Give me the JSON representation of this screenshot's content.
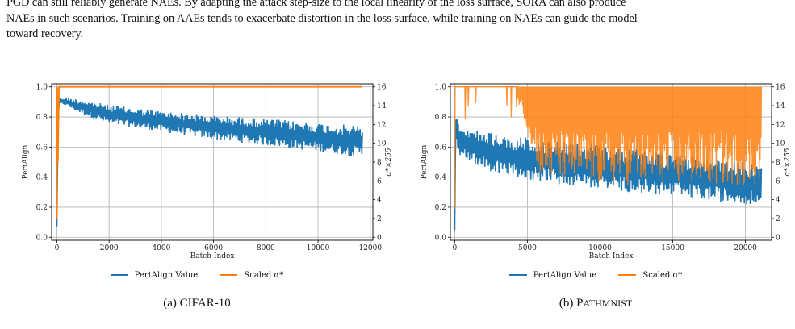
{
  "paragraph": {
    "line1": "PGD can still reliably generate NAEs. By adapting the attack step-size to the local linearity of the loss surface, SORA can also produce",
    "line2": "NAEs in such scenarios. Training on AAEs tends to exacerbate distortion in the loss surface, while training on NAEs can guide the model",
    "line3": "toward recovery."
  },
  "colors": {
    "pertalign": "#1f77b4",
    "scaled": "#ff7f0e",
    "grid": "#b0b0b0"
  },
  "figures": [
    {
      "caption_label": "(a)",
      "caption_name": "CIFAR-10",
      "legend": [
        "PertAlign Value",
        "Scaled α*"
      ]
    },
    {
      "caption_label": "(b)",
      "caption_name_first": "P",
      "caption_name_rest": "ATHMNIST",
      "legend": [
        "PertAlign Value",
        "Scaled α*"
      ]
    }
  ],
  "chart_data": [
    {
      "type": "line",
      "xlabel": "Batch Index",
      "ylabel": "PertAlign",
      "y2label": "α*×255",
      "xlim": [
        -200,
        12100
      ],
      "ylim": [
        -0.02,
        1.02
      ],
      "y2lim": [
        -0.32,
        16.32
      ],
      "xticks": [
        0,
        2000,
        4000,
        6000,
        8000,
        10000,
        12000
      ],
      "yticks": [
        0.0,
        0.2,
        0.4,
        0.6,
        0.8,
        1.0
      ],
      "y2ticks": [
        0,
        2,
        4,
        6,
        8,
        10,
        12,
        14,
        16
      ],
      "grid": true,
      "legend_position": "bottom-center",
      "series": [
        {
          "name": "PertAlign Value",
          "x": [
            0,
            50,
            100,
            300,
            800,
            2000,
            4000,
            6000,
            8000,
            10000,
            11700
          ],
          "upper": [
            0.08,
            0.85,
            0.93,
            0.93,
            0.92,
            0.88,
            0.84,
            0.81,
            0.79,
            0.76,
            0.74
          ],
          "lower": [
            0.05,
            0.8,
            0.88,
            0.88,
            0.83,
            0.75,
            0.7,
            0.65,
            0.61,
            0.57,
            0.53
          ]
        },
        {
          "name": "Scaled α*",
          "x": [
            0,
            15,
            40,
            80,
            11700
          ],
          "y": [
            2.0,
            16.0,
            8.0,
            16.0,
            16.0
          ]
        }
      ]
    },
    {
      "type": "line",
      "xlabel": "Batch Index",
      "ylabel": "PertAlign",
      "y2label": "α*×255",
      "xlim": [
        -300,
        21800
      ],
      "ylim": [
        -0.02,
        1.02
      ],
      "y2lim": [
        -0.32,
        16.32
      ],
      "xticks": [
        0,
        5000,
        10000,
        15000,
        20000
      ],
      "yticks": [
        0.0,
        0.2,
        0.4,
        0.6,
        0.8,
        1.0
      ],
      "y2ticks": [
        0,
        2,
        4,
        6,
        8,
        10,
        12,
        14,
        16
      ],
      "grid": true,
      "legend_position": "bottom-center",
      "series": [
        {
          "name": "PertAlign Value",
          "x": [
            0,
            50,
            150,
            300,
            2000,
            5000,
            8000,
            11000,
            14000,
            17000,
            20000,
            21100
          ],
          "upper": [
            0.05,
            0.9,
            0.8,
            0.75,
            0.7,
            0.66,
            0.63,
            0.6,
            0.57,
            0.53,
            0.5,
            0.48
          ],
          "lower": [
            0.03,
            0.55,
            0.6,
            0.55,
            0.45,
            0.38,
            0.34,
            0.31,
            0.28,
            0.25,
            0.22,
            0.21
          ]
        },
        {
          "name": "Scaled α*",
          "x": [
            0,
            20,
            60,
            150,
            4500,
            5000,
            6000,
            10000,
            15000,
            21100
          ],
          "upper": [
            3.0,
            16.0,
            16.0,
            16.0,
            16.0,
            16.0,
            16.0,
            16.0,
            16.0,
            16.0
          ],
          "lower": [
            0.5,
            10.0,
            16.0,
            16.0,
            14.0,
            11.0,
            6.0,
            5.5,
            5.5,
            5.5
          ]
        }
      ]
    }
  ]
}
